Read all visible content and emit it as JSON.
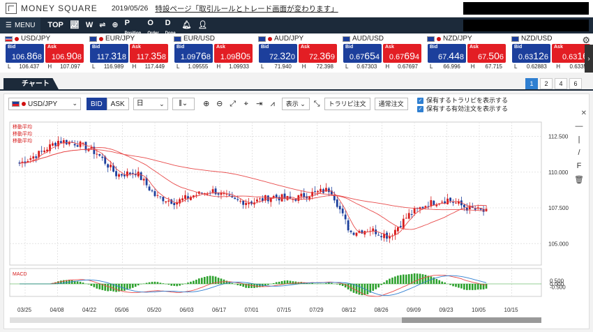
{
  "topbar": {
    "logo": "MONEY SQUARE",
    "date": "2019/05/26",
    "notice": "特設ページ「取引ルールとトレード画面が変わります」"
  },
  "nav": {
    "menu": "MENU",
    "items": [
      "TOP",
      "chart-icon",
      "w-icon",
      "exchange-icon",
      "plus-icon",
      "Position",
      "Order",
      "Done",
      "bell-icon",
      "user-icon"
    ]
  },
  "rates": [
    {
      "pair": "USD/JPY",
      "flag": "us",
      "bid_pre": "106.",
      "bid_big": "86",
      "bid_suf": "8",
      "ask_pre": "106.",
      "ask_big": "90",
      "ask_suf": "8",
      "low": "106.437",
      "high": "107.097"
    },
    {
      "pair": "EUR/JPY",
      "flag": "eu",
      "bid_pre": "117.",
      "bid_big": "31",
      "bid_suf": "8",
      "ask_pre": "117.",
      "ask_big": "35",
      "ask_suf": "8",
      "low": "116.989",
      "high": "117.449"
    },
    {
      "pair": "EUR/USD",
      "flag": "eu",
      "bid_pre": "1.09",
      "bid_big": "76",
      "bid_suf": "8",
      "ask_pre": "1.09",
      "ask_big": "80",
      "ask_suf": "5",
      "low": "1.09555",
      "high": "1.09933"
    },
    {
      "pair": "AUD/JPY",
      "flag": "au",
      "bid_pre": "72.",
      "bid_big": "32",
      "bid_suf": "0",
      "ask_pre": "72.",
      "ask_big": "36",
      "ask_suf": "9",
      "low": "71.940",
      "high": "72.398"
    },
    {
      "pair": "AUD/USD",
      "flag": "au",
      "bid_pre": "0.67",
      "bid_big": "65",
      "bid_suf": "4",
      "ask_pre": "0.67",
      "ask_big": "69",
      "ask_suf": "4",
      "low": "0.67303",
      "high": "0.67697"
    },
    {
      "pair": "NZD/JPY",
      "flag": "nz",
      "bid_pre": "67.",
      "bid_big": "44",
      "bid_suf": "8",
      "ask_pre": "67.",
      "ask_big": "50",
      "ask_suf": "6",
      "low": "66.996",
      "high": "67.715"
    },
    {
      "pair": "NZD/USD",
      "flag": "nz",
      "bid_pre": "0.63",
      "bid_big": "12",
      "bid_suf": "6",
      "ask_pre": "0.63",
      "ask_big": "16",
      "ask_suf": "",
      "low": "0.62883",
      "high": "0.6335"
    }
  ],
  "labels": {
    "bid": "Bid",
    "ask": "Ask",
    "l": "L",
    "h": "H"
  },
  "tabs": {
    "chart": "チャート",
    "pages": [
      "1",
      "2",
      "4",
      "6"
    ]
  },
  "toolbar": {
    "symbol": "USD/JPY",
    "bid": "BID",
    "ask": "ASK",
    "period": "日",
    "display": "表示",
    "trap": "トラリピ注文",
    "normal": "通常注文",
    "check1": "保有するトラリピを表示する",
    "check2": "保有する有効注文を表示する"
  },
  "chart_data": {
    "type": "candlestick",
    "symbol": "USD/JPY",
    "x_ticks": [
      "03/25",
      "04/08",
      "04/22",
      "05/06",
      "05/20",
      "06/03",
      "06/17",
      "07/01",
      "07/15",
      "07/29",
      "08/12",
      "08/26",
      "09/09",
      "09/23",
      "10/05",
      "10/15"
    ],
    "y_ticks": [
      "112.500",
      "110.000",
      "107.500",
      "105.000"
    ],
    "ylim": [
      103.5,
      113.5
    ],
    "ma_labels": [
      "移動平均",
      "移動平均",
      "移動平均"
    ],
    "macd_label": "MACD",
    "macd_ticks": [
      "0.500",
      "0.000",
      "-0.500"
    ],
    "close_approx": [
      110.6,
      111.3,
      112.2,
      112.0,
      111.3,
      109.8,
      110.0,
      108.3,
      107.9,
      108.4,
      108.7,
      108.0,
      107.9,
      108.3,
      108.1,
      108.5,
      108.8,
      105.8,
      106.0,
      105.5,
      107.0,
      107.8,
      108.1,
      107.5,
      107.2
    ]
  }
}
